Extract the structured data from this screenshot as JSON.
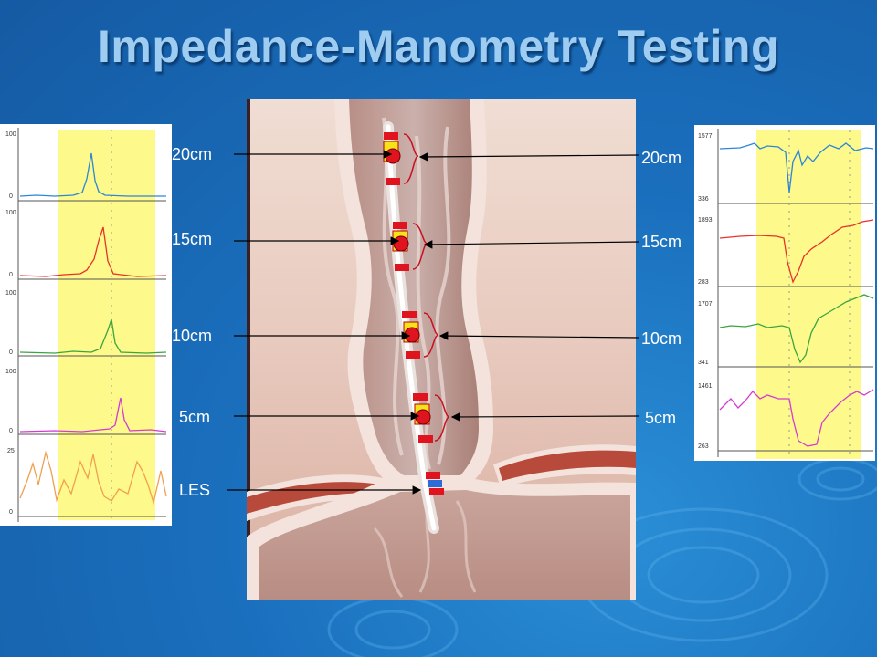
{
  "title": "Impedance-Manometry Testing",
  "left_labels": [
    "20cm",
    "15cm",
    "10cm",
    "5cm",
    "LES"
  ],
  "right_labels": [
    "20cm",
    "15cm",
    "10cm",
    "5cm"
  ],
  "left_panel": {
    "axis_labels": [
      "100",
      "0",
      "100",
      "0",
      "100",
      "0",
      "100",
      "0",
      "25",
      "0"
    ]
  },
  "right_panel": {
    "axis_labels": [
      "1577",
      "336",
      "1893",
      "283",
      "1707",
      "341",
      "1461",
      "263"
    ]
  },
  "colors": {
    "background": "#1a6fbd",
    "title": "#9fcdf2",
    "highlight": "#fdf98a",
    "trace_blue": "#2e86d6",
    "trace_red": "#e8322b",
    "trace_green": "#3aa640",
    "trace_magenta": "#d43ad4",
    "trace_orange": "#f0a050",
    "catheter_red": "#e0141e",
    "sensor_yellow": "#f5e21a"
  }
}
